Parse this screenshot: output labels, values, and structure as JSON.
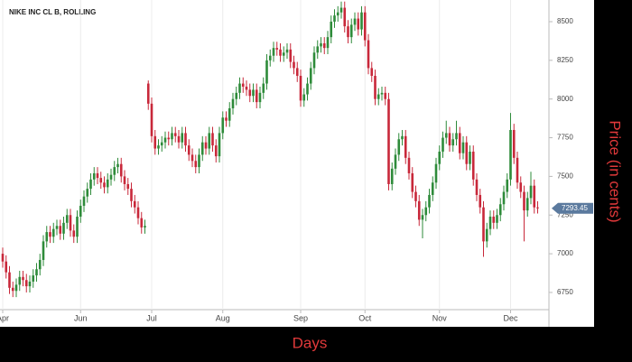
{
  "chart_data": {
    "type": "candlestick",
    "title": "NIKE INC CL B, ROLLING",
    "x_label": "Days",
    "y_label": "Price (in cents)",
    "categories": [
      null,
      null,
      null,
      null,
      null,
      null,
      null,
      null,
      null,
      null,
      null,
      null,
      null,
      null,
      null,
      null,
      null,
      null,
      null,
      null,
      null,
      null,
      null,
      null,
      null,
      null,
      null,
      null,
      null,
      null,
      null,
      null,
      null,
      null,
      null,
      null,
      null,
      null,
      null,
      null,
      null,
      null,
      null,
      null,
      null,
      null,
      null,
      null,
      null,
      null,
      null,
      null,
      null,
      null,
      null,
      null,
      null,
      null,
      null,
      null,
      null,
      null,
      null,
      null,
      null,
      null,
      null,
      null,
      null,
      null,
      null,
      null,
      null,
      null,
      null,
      null,
      null,
      null,
      null,
      null,
      null,
      null,
      null,
      null,
      null,
      null,
      null,
      null,
      null,
      null,
      null,
      null,
      null,
      null,
      null,
      null,
      null,
      null,
      null,
      null,
      null,
      null,
      null,
      null,
      null,
      null,
      null,
      null,
      null,
      null,
      null,
      null,
      null,
      null,
      null,
      null,
      null,
      null,
      null,
      null,
      null,
      null,
      null,
      null,
      null,
      null,
      null,
      null,
      null,
      null,
      null,
      null,
      null,
      null,
      null,
      null,
      null,
      null,
      null,
      null,
      null,
      null,
      null,
      null,
      null,
      null,
      null,
      null,
      null,
      null,
      null,
      null,
      null,
      null,
      null,
      null,
      null,
      null,
      null
    ],
    "open": [
      7000,
      6950,
      6880,
      6780,
      6760,
      6800,
      6850,
      6830,
      6790,
      6820,
      6860,
      6900,
      6960,
      7080,
      7140,
      7110,
      7160,
      7180,
      7130,
      7200,
      7250,
      7150,
      7110,
      7240,
      7310,
      7370,
      7420,
      7480,
      7520,
      7490,
      7460,
      7430,
      7480,
      7510,
      7560,
      7580,
      7500,
      7450,
      7420,
      7340,
      7300,
      7230,
      7170,
      8100,
      7970,
      7760,
      7680,
      7700,
      7720,
      7750,
      7740,
      7780,
      7760,
      7720,
      7780,
      7700,
      7640,
      7600,
      7560,
      7640,
      7720,
      7680,
      7780,
      7700,
      7630,
      7780,
      7880,
      7860,
      7940,
      8000,
      8040,
      8100,
      8080,
      8060,
      8020,
      8060,
      7980,
      8040,
      8100,
      8250,
      8280,
      8330,
      8320,
      8280,
      8300,
      8320,
      8240,
      8200,
      8150,
      7990,
      8030,
      8100,
      8200,
      8300,
      8340,
      8360,
      8330,
      8400,
      8500,
      8540,
      8560,
      8590,
      8470,
      8400,
      8480,
      8520,
      8450,
      8560,
      8380,
      8200,
      8150,
      8000,
      8030,
      8040,
      8000,
      7450,
      7550,
      7640,
      7740,
      7760,
      7620,
      7520,
      7400,
      7340,
      7220,
      7250,
      7300,
      7380,
      7460,
      7580,
      7660,
      7750,
      7780,
      7700,
      7740,
      7780,
      7650,
      7720,
      7580,
      7660,
      7480,
      7380,
      7300,
      7080,
      7160,
      7240,
      7200,
      7250,
      7320,
      7400,
      7480,
      7800,
      7620,
      7460,
      7400,
      7280,
      7360,
      7440,
      7300
    ],
    "high": [
      7040,
      6990,
      6920,
      6820,
      6840,
      6890,
      6890,
      6870,
      6860,
      6900,
      6940,
      7000,
      7120,
      7180,
      7180,
      7200,
      7220,
      7220,
      7240,
      7290,
      7290,
      7190,
      7280,
      7350,
      7410,
      7460,
      7520,
      7560,
      7560,
      7530,
      7500,
      7520,
      7550,
      7600,
      7620,
      7620,
      7540,
      7490,
      7460,
      7380,
      7340,
      7270,
      7220,
      8120,
      8010,
      7800,
      7740,
      7760,
      7790,
      7790,
      7820,
      7820,
      7800,
      7820,
      7820,
      7740,
      7680,
      7640,
      7680,
      7760,
      7760,
      7820,
      7820,
      7740,
      7820,
      7920,
      7920,
      7980,
      8040,
      8080,
      8140,
      8140,
      8120,
      8100,
      8100,
      8100,
      8080,
      8140,
      8290,
      8320,
      8370,
      8370,
      8360,
      8340,
      8360,
      8360,
      8280,
      8240,
      8190,
      8070,
      8140,
      8240,
      8340,
      8380,
      8400,
      8400,
      8440,
      8540,
      8580,
      8600,
      8630,
      8630,
      8510,
      8520,
      8560,
      8560,
      8600,
      8600,
      8420,
      8240,
      8190,
      8070,
      8080,
      8080,
      8040,
      7590,
      7680,
      7780,
      7800,
      7800,
      7660,
      7560,
      7440,
      7380,
      7290,
      7340,
      7420,
      7500,
      7620,
      7700,
      7790,
      7860,
      7820,
      7780,
      7860,
      7820,
      7760,
      7760,
      7700,
      7700,
      7520,
      7420,
      7340,
      7200,
      7280,
      7280,
      7290,
      7360,
      7440,
      7520,
      7910,
      7840,
      7660,
      7500,
      7440,
      7400,
      7530,
      7480,
      7340
    ],
    "low": [
      6910,
      6840,
      6740,
      6720,
      6720,
      6760,
      6790,
      6750,
      6750,
      6780,
      6820,
      6860,
      6920,
      7040,
      7070,
      7070,
      7120,
      7090,
      7090,
      7160,
      7110,
      7070,
      7070,
      7200,
      7270,
      7330,
      7380,
      7440,
      7450,
      7420,
      7390,
      7390,
      7440,
      7470,
      7520,
      7460,
      7410,
      7380,
      7300,
      7260,
      7190,
      7130,
      7130,
      7930,
      7720,
      7640,
      7640,
      7660,
      7680,
      7700,
      7700,
      7720,
      7680,
      7680,
      7660,
      7600,
      7560,
      7520,
      7520,
      7600,
      7640,
      7640,
      7660,
      7590,
      7590,
      7740,
      7820,
      7820,
      7900,
      7960,
      8000,
      8040,
      8020,
      7980,
      7980,
      7940,
      7940,
      8000,
      8060,
      8210,
      8240,
      8280,
      8240,
      8240,
      8260,
      8200,
      8160,
      8110,
      7950,
      7950,
      7990,
      8060,
      8160,
      8260,
      8300,
      8290,
      8290,
      8360,
      8460,
      8500,
      8520,
      8430,
      8360,
      8360,
      8440,
      8410,
      8410,
      8340,
      8160,
      8110,
      7960,
      7960,
      7990,
      7960,
      7410,
      7410,
      7510,
      7600,
      7700,
      7580,
      7480,
      7360,
      7300,
      7180,
      7100,
      7210,
      7260,
      7340,
      7420,
      7540,
      7620,
      7710,
      7660,
      7660,
      7700,
      7610,
      7610,
      7540,
      7540,
      7440,
      7340,
      7260,
      6980,
      7040,
      7120,
      7160,
      7160,
      7210,
      7280,
      7360,
      7440,
      7580,
      7420,
      7360,
      7080,
      7240,
      7320,
      7260,
      7260
    ],
    "close": [
      6950,
      6880,
      6780,
      6760,
      6800,
      6850,
      6830,
      6790,
      6820,
      6860,
      6900,
      6960,
      7080,
      7140,
      7110,
      7160,
      7180,
      7130,
      7200,
      7250,
      7150,
      7110,
      7240,
      7310,
      7370,
      7420,
      7480,
      7520,
      7490,
      7460,
      7430,
      7480,
      7510,
      7560,
      7580,
      7500,
      7450,
      7420,
      7340,
      7300,
      7230,
      7170,
      7180,
      7970,
      7760,
      7680,
      7700,
      7720,
      7750,
      7740,
      7780,
      7760,
      7720,
      7780,
      7700,
      7640,
      7600,
      7560,
      7640,
      7720,
      7680,
      7780,
      7700,
      7630,
      7780,
      7880,
      7860,
      7940,
      8000,
      8040,
      8100,
      8080,
      8060,
      8020,
      8060,
      7980,
      8040,
      8100,
      8250,
      8280,
      8330,
      8320,
      8280,
      8300,
      8320,
      8240,
      8200,
      8150,
      7990,
      8030,
      8100,
      8200,
      8300,
      8340,
      8360,
      8330,
      8400,
      8500,
      8540,
      8560,
      8590,
      8470,
      8400,
      8480,
      8520,
      8450,
      8560,
      8380,
      8200,
      8150,
      8000,
      8030,
      8040,
      8000,
      7450,
      7550,
      7640,
      7740,
      7760,
      7620,
      7520,
      7400,
      7340,
      7220,
      7250,
      7300,
      7380,
      7460,
      7580,
      7660,
      7750,
      7780,
      7700,
      7740,
      7780,
      7650,
      7720,
      7580,
      7660,
      7480,
      7380,
      7300,
      7080,
      7160,
      7240,
      7200,
      7250,
      7320,
      7400,
      7480,
      7800,
      7620,
      7460,
      7400,
      7280,
      7360,
      7440,
      7300,
      7293.45
    ],
    "up_color": "#2e8b3a",
    "down_color": "#c8283a",
    "last_price_color": "#5b7a9e",
    "ylim": [
      6528,
      8640
    ],
    "yticks": [
      6750,
      7000,
      7250,
      7500,
      7750,
      8000,
      8250,
      8500
    ],
    "xticks": [
      {
        "value": 0,
        "label": "Apr"
      },
      {
        "value": 23,
        "label": "Jun"
      },
      {
        "value": 44,
        "label": "Jul"
      },
      {
        "value": 65,
        "label": "Aug"
      },
      {
        "value": 88,
        "label": "Sep"
      },
      {
        "value": 107,
        "label": "Oct"
      },
      {
        "value": 129,
        "label": "Nov"
      },
      {
        "value": 150,
        "label": "Dec"
      }
    ],
    "grid": "x"
  }
}
